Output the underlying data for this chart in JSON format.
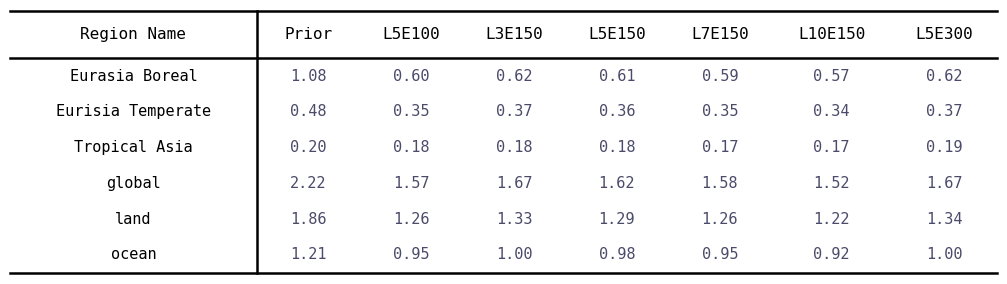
{
  "columns": [
    "Region Name",
    "Prior",
    "L5E100",
    "L3E150",
    "L5E150",
    "L7E150",
    "L10E150",
    "L5E300"
  ],
  "rows": [
    [
      "Eurasia Boreal",
      "1.08",
      "0.60",
      "0.62",
      "0.61",
      "0.59",
      "0.57",
      "0.62"
    ],
    [
      "Eurisia Temperate",
      "0.48",
      "0.35",
      "0.37",
      "0.36",
      "0.35",
      "0.34",
      "0.37"
    ],
    [
      "Tropical Asia",
      "0.20",
      "0.18",
      "0.18",
      "0.18",
      "0.17",
      "0.17",
      "0.19"
    ],
    [
      "global",
      "2.22",
      "1.57",
      "1.67",
      "1.62",
      "1.58",
      "1.52",
      "1.67"
    ],
    [
      "land",
      "1.86",
      "1.26",
      "1.33",
      "1.29",
      "1.26",
      "1.22",
      "1.34"
    ],
    [
      "ocean",
      "1.21",
      "0.95",
      "1.00",
      "0.98",
      "0.95",
      "0.92",
      "1.00"
    ]
  ],
  "background_color": "#ffffff",
  "line_color": "#000000",
  "font_color": "#000000",
  "data_color": "#4a4a6a",
  "font_size": 11.0,
  "header_font_size": 11.5,
  "figwidth": 10.07,
  "figheight": 2.84,
  "dpi": 100
}
